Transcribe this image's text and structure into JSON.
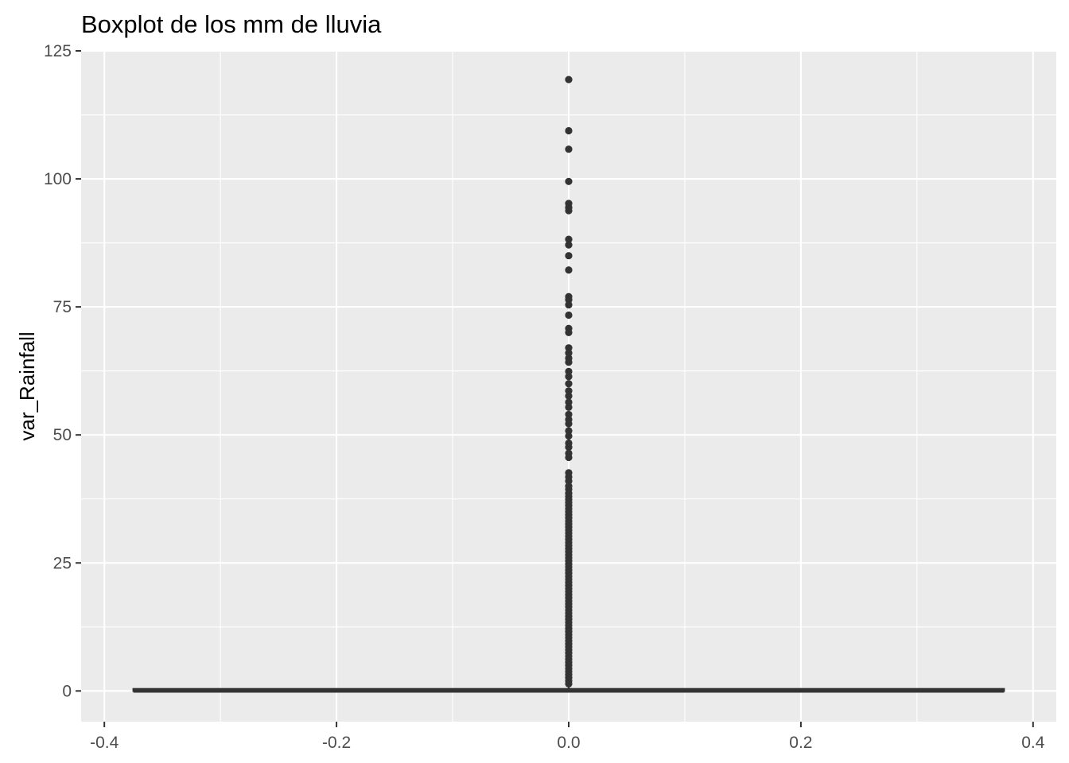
{
  "chart_data": {
    "type": "boxplot",
    "title": "Boxplot de los mm de lluvia",
    "xlabel": "",
    "ylabel": "var_Rainfall",
    "xlim": [
      -0.42,
      0.42
    ],
    "ylim": [
      -6,
      125
    ],
    "x_ticks": [
      -0.4,
      -0.2,
      0.0,
      0.2,
      0.4
    ],
    "x_tick_labels": [
      "-0.4",
      "-0.2",
      "0.0",
      "0.2",
      "0.4"
    ],
    "y_ticks": [
      0,
      25,
      50,
      75,
      100,
      125
    ],
    "y_tick_labels": [
      "0",
      "25",
      "50",
      "75",
      "100",
      "125"
    ],
    "grid": true,
    "background": "#ebebeb",
    "mark_color": "#333333",
    "box": {
      "x": 0.0,
      "width": 0.75,
      "min": 0.0,
      "q1": 0.0,
      "median": 0.0,
      "q3": 0.4,
      "max": 1.0
    },
    "outliers": [
      119.4,
      109.4,
      105.8,
      99.5,
      95.2,
      94.4,
      93.8,
      88.2,
      87.1,
      85.0,
      82.2,
      77.0,
      76.4,
      75.4,
      73.4,
      70.8,
      70.0,
      67.0,
      66.0,
      65.0,
      64.2,
      62.4,
      61.4,
      60.0,
      58.6,
      57.6,
      56.4,
      55.4,
      54.0,
      53.0,
      52.2,
      50.8,
      49.8,
      48.4,
      47.6,
      46.4,
      45.6,
      42.6,
      41.8,
      41.0,
      40.0,
      39.4,
      38.6,
      38.0,
      37.4,
      36.8,
      36.2,
      35.6,
      35.0,
      34.4,
      33.8,
      33.2,
      32.6,
      32.0,
      31.4,
      30.8,
      30.2,
      29.6,
      29.0,
      28.4,
      27.8,
      27.2,
      26.6,
      26.0,
      25.4,
      24.8,
      24.2,
      23.6,
      23.0,
      22.4,
      21.8,
      21.2,
      20.6,
      20.0,
      19.4,
      18.8,
      18.2,
      17.6,
      17.0,
      16.4,
      15.8,
      15.2,
      14.6,
      14.0,
      13.4,
      12.8,
      12.2,
      11.6,
      11.0,
      10.4,
      9.8,
      9.2,
      8.6,
      8.0,
      7.4,
      6.8,
      6.2,
      5.6,
      5.0,
      4.4,
      3.8,
      3.2,
      2.6,
      2.0,
      1.4
    ]
  }
}
